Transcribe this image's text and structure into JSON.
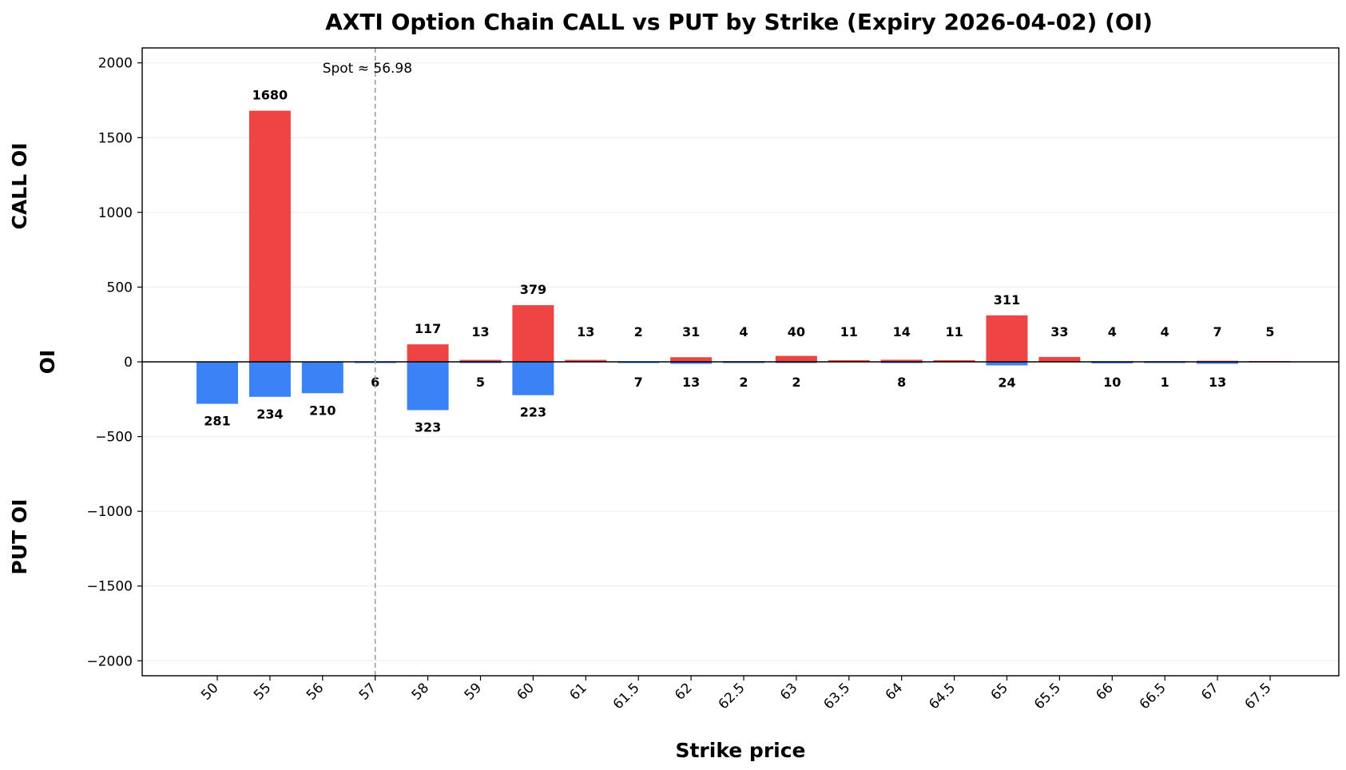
{
  "chart_data": {
    "type": "bar",
    "title": "AXTI Option Chain CALL vs PUT by Strike (Expiry 2026-04-02) (OI)",
    "xlabel": "Strike price",
    "ylabel": "OI",
    "upper_label": "CALL OI",
    "lower_label": "PUT OI",
    "categories": [
      "50",
      "55",
      "56",
      "57",
      "58",
      "59",
      "60",
      "61",
      "61.5",
      "62",
      "62.5",
      "63",
      "63.5",
      "64",
      "64.5",
      "65",
      "65.5",
      "66",
      "66.5",
      "67",
      "67.5"
    ],
    "series": [
      {
        "name": "CALL",
        "color": "#ef4444",
        "values": [
          0,
          1680,
          0,
          0,
          117,
          13,
          379,
          13,
          2,
          31,
          4,
          40,
          11,
          14,
          11,
          311,
          33,
          4,
          4,
          7,
          5
        ]
      },
      {
        "name": "PUT",
        "color": "#3b82f6",
        "values": [
          281,
          234,
          210,
          6,
          323,
          5,
          223,
          0,
          7,
          13,
          2,
          2,
          0,
          8,
          0,
          24,
          0,
          10,
          1,
          13,
          0
        ]
      }
    ],
    "ylim": [
      -2100,
      2100
    ],
    "yticks": [
      2000,
      1500,
      1000,
      500,
      0,
      -500,
      -1000,
      -1500,
      -2000
    ],
    "ytick_labels": [
      "2000",
      "1500",
      "1000",
      "500",
      "0",
      "−500",
      "−1000",
      "−1500",
      "−2000"
    ],
    "grid": true,
    "spot": {
      "value": 56.98,
      "position_category": "57",
      "label": "Spot ≈ 56.98"
    }
  }
}
